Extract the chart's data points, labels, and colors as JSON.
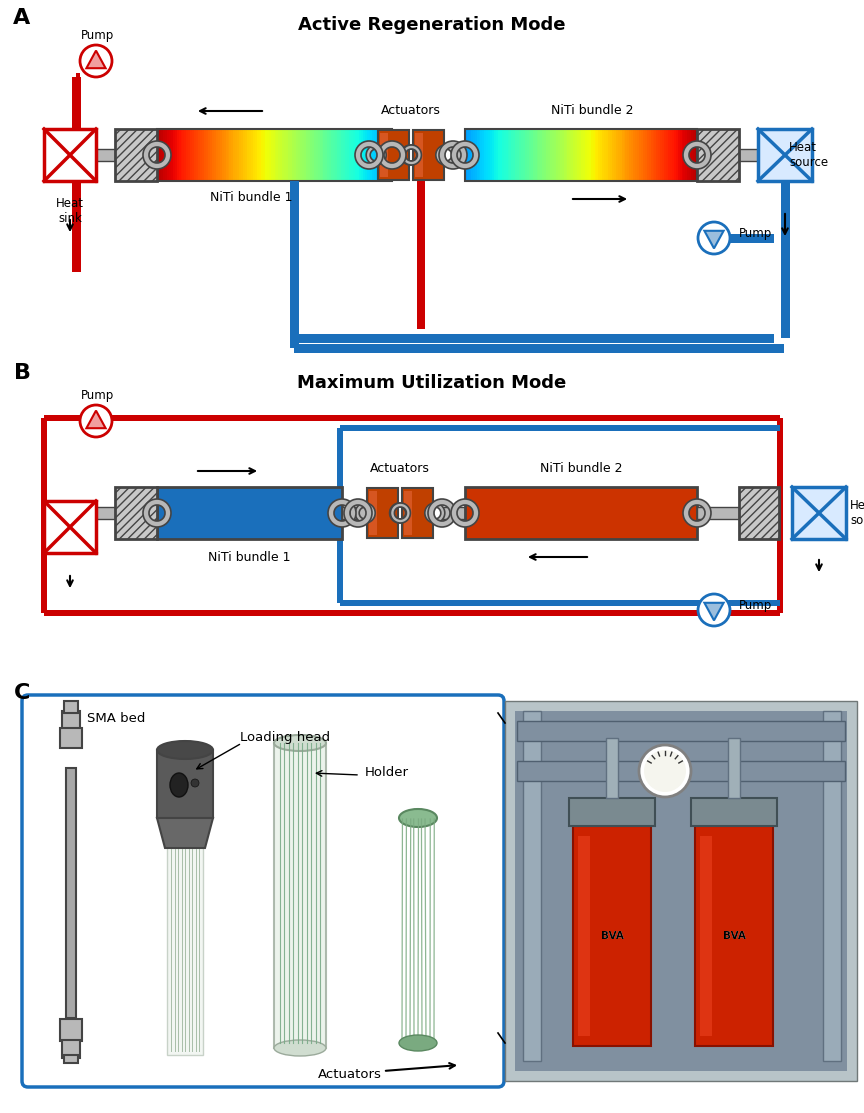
{
  "panel_A_title": "Active Regeneration Mode",
  "panel_B_title": "Maximum Utilization Mode",
  "panel_A_label": "A",
  "panel_B_label": "B",
  "panel_C_label": "C",
  "red_color": "#CC0000",
  "blue_color": "#1A6FBB",
  "bg_color": "#FFFFFF",
  "font_size_title": 13,
  "font_size_label": 14,
  "font_size_text": 8.5,
  "labels_A": {
    "pump_left": "Pump",
    "heat_sink": "Heat\nsink",
    "niti1": "NiTi bundle 1",
    "actuators": "Actuators",
    "niti2": "NiTi bundle 2",
    "heat_source": "Heat\nsource",
    "pump_right": "Pump"
  },
  "labels_B": {
    "pump_left": "Pump",
    "niti1": "NiTi bundle 1",
    "actuators": "Actuators",
    "niti2": "NiTi bundle 2",
    "heat_source": "Heat\nsource",
    "pump_right": "Pump"
  },
  "labels_C": {
    "sma_bed": "SMA bed",
    "loading_head": "Loading head",
    "holder": "Holder",
    "actuators": "Actuators"
  }
}
